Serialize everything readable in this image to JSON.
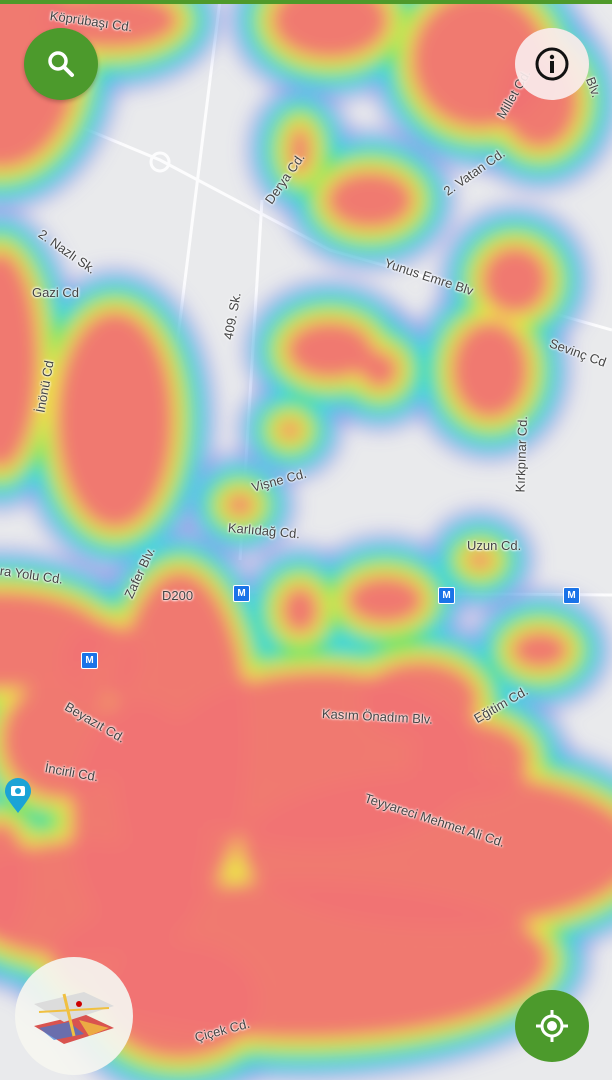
{
  "map": {
    "type": "heatmap",
    "colors": {
      "low": "#7b7fe6",
      "low_mid": "#43d5ee",
      "mid": "#4ee06a",
      "high_mid": "#f2ee3a",
      "high": "#f07373",
      "base": "#e9eaec",
      "accent": "#4c9a2c"
    },
    "labels": {
      "kopruba": "Köprübaşı Cd.",
      "millet": "Millet Cd.",
      "blv": "Blv.",
      "vatan": "2. Vatan Cd.",
      "derya": "Derya Cd.",
      "nazli": "2. Nazlı Sk.",
      "gazi": "Gazi Cd",
      "sk409": "409. Sk.",
      "yunus": "Yunus Emre Blv",
      "sevinc": "Sevinç Cd",
      "inonu": "İnönü Cd",
      "kirkpinar": "Kırkpınar Cd.",
      "visne": "Vişne Cd.",
      "karlidag": "Karlıdağ Cd.",
      "uzun": "Uzun Cd.",
      "yolu": "ra Yolu Cd.",
      "zafer": "Zafer Blv.",
      "d200": "D200",
      "beyazit": "Beyazıt Cd.",
      "egitim": "Eğitim Cd.",
      "kasim": "Kasım Önadım Blv.",
      "incirli": "İncirli Cd.",
      "teyyareci": "Teyyareci Mehmet Ali Cd.",
      "cicek": "Çiçek Cd."
    },
    "metro_label": "M"
  },
  "controls": {
    "search": "search-icon",
    "info": "info-icon",
    "locate": "crosshair-icon",
    "layers": "map-layers-icon"
  }
}
